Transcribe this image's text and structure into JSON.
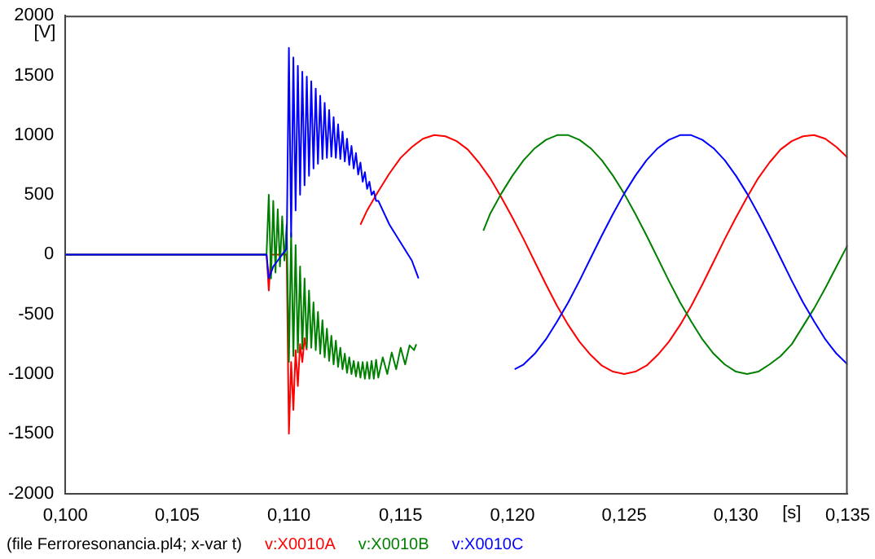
{
  "chart_data": {
    "type": "line",
    "xlabel": "[s]",
    "ylabel": "[V]",
    "xlim": [
      0.1,
      0.135
    ],
    "ylim": [
      -2000,
      2000
    ],
    "xticks": [
      {
        "value": 0.1,
        "label": "0,100"
      },
      {
        "value": 0.105,
        "label": "0,105"
      },
      {
        "value": 0.11,
        "label": "0,110"
      },
      {
        "value": 0.115,
        "label": "0,115"
      },
      {
        "value": 0.12,
        "label": "0,120"
      },
      {
        "value": 0.125,
        "label": "0,125"
      },
      {
        "value": 0.13,
        "label": "0,130"
      },
      {
        "value": 0.135,
        "label": "0,135"
      }
    ],
    "yticks": [
      -2000,
      -1500,
      -1000,
      -500,
      0,
      500,
      1000,
      1500,
      2000
    ],
    "grid": false,
    "legend": "bottom",
    "marker": "none",
    "line_style": "solid",
    "annotations": [
      "(file Ferroresonancia.pl4; x-var t)"
    ],
    "series": [
      {
        "name": "v:X0010A",
        "color": "#ff0000",
        "x": [
          0.1,
          0.109,
          0.1091,
          0.1092,
          0.1099,
          0.11,
          0.1101,
          0.1102,
          0.1103,
          0.1104,
          0.1105,
          0.1106,
          0.1107,
          0.1108,
          0.112,
          0.1132,
          0.1135,
          0.114,
          0.1145,
          0.115,
          0.1155,
          0.116,
          0.1165,
          0.117,
          0.1175,
          0.118,
          0.1185,
          0.119,
          0.1195,
          0.12,
          0.1205,
          0.121,
          0.1215,
          0.122,
          0.1225,
          0.123,
          0.1235,
          0.124,
          0.1245,
          0.125,
          0.1255,
          0.126,
          0.1265,
          0.127,
          0.1275,
          0.128,
          0.1285,
          0.129,
          0.1295,
          0.13,
          0.1305,
          0.131,
          0.1315,
          0.132,
          0.1325,
          0.133,
          0.1335,
          0.134,
          0.1345,
          0.135
        ],
        "values": [
          0,
          0,
          -300,
          0,
          0,
          -1500,
          -900,
          -1300,
          -800,
          -1100,
          -750,
          -900,
          -700,
          -800,
          null,
          250,
          370,
          530,
          680,
          810,
          900,
          970,
          1000,
          990,
          950,
          880,
          770,
          640,
          480,
          310,
          130,
          -60,
          -250,
          -430,
          -590,
          -730,
          -840,
          -930,
          -980,
          -1000,
          -980,
          -930,
          -840,
          -730,
          -590,
          -430,
          -250,
          -60,
          130,
          310,
          480,
          640,
          770,
          880,
          950,
          990,
          1000,
          970,
          900,
          810
        ]
      },
      {
        "name": "v:X0010B",
        "color": "#008000",
        "x": [
          0.1,
          0.109,
          0.1091,
          0.1092,
          0.1093,
          0.1094,
          0.1095,
          0.1096,
          0.1097,
          0.1098,
          0.1099,
          0.11,
          0.1101,
          0.1102,
          0.1103,
          0.1104,
          0.1105,
          0.1106,
          0.1107,
          0.1108,
          0.1109,
          0.111,
          0.1111,
          0.1112,
          0.1113,
          0.1114,
          0.1115,
          0.1116,
          0.1117,
          0.1118,
          0.1119,
          0.112,
          0.1121,
          0.1122,
          0.1123,
          0.1124,
          0.1125,
          0.1126,
          0.1127,
          0.1128,
          0.1129,
          0.113,
          0.1131,
          0.1132,
          0.1133,
          0.1134,
          0.1135,
          0.1136,
          0.1137,
          0.1138,
          0.1139,
          0.114,
          0.1142,
          0.1144,
          0.1146,
          0.1148,
          0.115,
          0.1152,
          0.1154,
          0.1156,
          0.1157,
          0.117,
          0.1187,
          0.119,
          0.1195,
          0.12,
          0.1205,
          0.121,
          0.1215,
          0.122,
          0.1225,
          0.123,
          0.1235,
          0.124,
          0.1245,
          0.125,
          0.1255,
          0.126,
          0.1265,
          0.127,
          0.1275,
          0.128,
          0.1285,
          0.129,
          0.1295,
          0.13,
          0.1305,
          0.131,
          0.1315,
          0.132,
          0.1325,
          0.133,
          0.1335,
          0.134,
          0.1345,
          0.135
        ],
        "values": [
          0,
          0,
          500,
          -200,
          450,
          -150,
          380,
          -100,
          320,
          -50,
          250,
          -900,
          180,
          -850,
          80,
          -820,
          -100,
          -790,
          -200,
          -780,
          -300,
          -780,
          -400,
          -800,
          -480,
          -830,
          -550,
          -860,
          -620,
          -890,
          -680,
          -920,
          -720,
          -940,
          -780,
          -960,
          -830,
          -990,
          -860,
          -1000,
          -890,
          -1020,
          -900,
          -1030,
          -900,
          -1040,
          -900,
          -1040,
          -890,
          -1040,
          -880,
          -1030,
          -860,
          -1000,
          -820,
          -960,
          -780,
          -920,
          -760,
          -800,
          -750,
          null,
          200,
          340,
          510,
          660,
          790,
          890,
          960,
          1000,
          1000,
          960,
          890,
          790,
          660,
          510,
          340,
          160,
          -30,
          -220,
          -400,
          -560,
          -710,
          -830,
          -920,
          -980,
          -1000,
          -980,
          -920,
          -850,
          -750,
          -600,
          -450,
          -280,
          -100,
          80
        ]
      },
      {
        "name": "v:X0010C",
        "color": "#0000ff",
        "x": [
          0.1,
          0.109,
          0.1091,
          0.1093,
          0.1095,
          0.1097,
          0.1099,
          0.11,
          0.1101,
          0.1102,
          0.1103,
          0.1104,
          0.1105,
          0.1106,
          0.1107,
          0.1108,
          0.1109,
          0.111,
          0.1111,
          0.1112,
          0.1113,
          0.1114,
          0.1115,
          0.1116,
          0.1117,
          0.1118,
          0.1119,
          0.112,
          0.1121,
          0.1122,
          0.1123,
          0.1124,
          0.1125,
          0.1126,
          0.1127,
          0.1128,
          0.1129,
          0.113,
          0.1131,
          0.1132,
          0.1133,
          0.1134,
          0.1135,
          0.1136,
          0.1137,
          0.1138,
          0.1139,
          0.114,
          0.1145,
          0.115,
          0.1155,
          0.1158,
          0.118,
          0.1201,
          0.1205,
          0.121,
          0.1215,
          0.122,
          0.1225,
          0.123,
          0.1235,
          0.124,
          0.1245,
          0.125,
          0.1255,
          0.126,
          0.1265,
          0.127,
          0.1275,
          0.128,
          0.1285,
          0.129,
          0.1295,
          0.13,
          0.1305,
          0.131,
          0.1315,
          0.132,
          0.1325,
          0.133,
          0.1335,
          0.134,
          0.1345,
          0.135
        ],
        "values": [
          0,
          0,
          -200,
          -100,
          -50,
          0,
          50,
          1730,
          150,
          1650,
          370,
          1580,
          500,
          1530,
          580,
          1490,
          660,
          1450,
          720,
          1390,
          760,
          1330,
          800,
          1270,
          810,
          1210,
          820,
          1150,
          810,
          1090,
          800,
          1030,
          780,
          970,
          750,
          910,
          720,
          850,
          670,
          770,
          610,
          690,
          550,
          610,
          500,
          530,
          450,
          450,
          250,
          100,
          -50,
          -200,
          null,
          -960,
          -920,
          -830,
          -710,
          -560,
          -400,
          -220,
          -30,
          160,
          340,
          510,
          660,
          790,
          890,
          960,
          1000,
          1000,
          960,
          890,
          790,
          660,
          510,
          340,
          160,
          -30,
          -220,
          -400,
          -560,
          -710,
          -830,
          -920
        ]
      }
    ]
  }
}
